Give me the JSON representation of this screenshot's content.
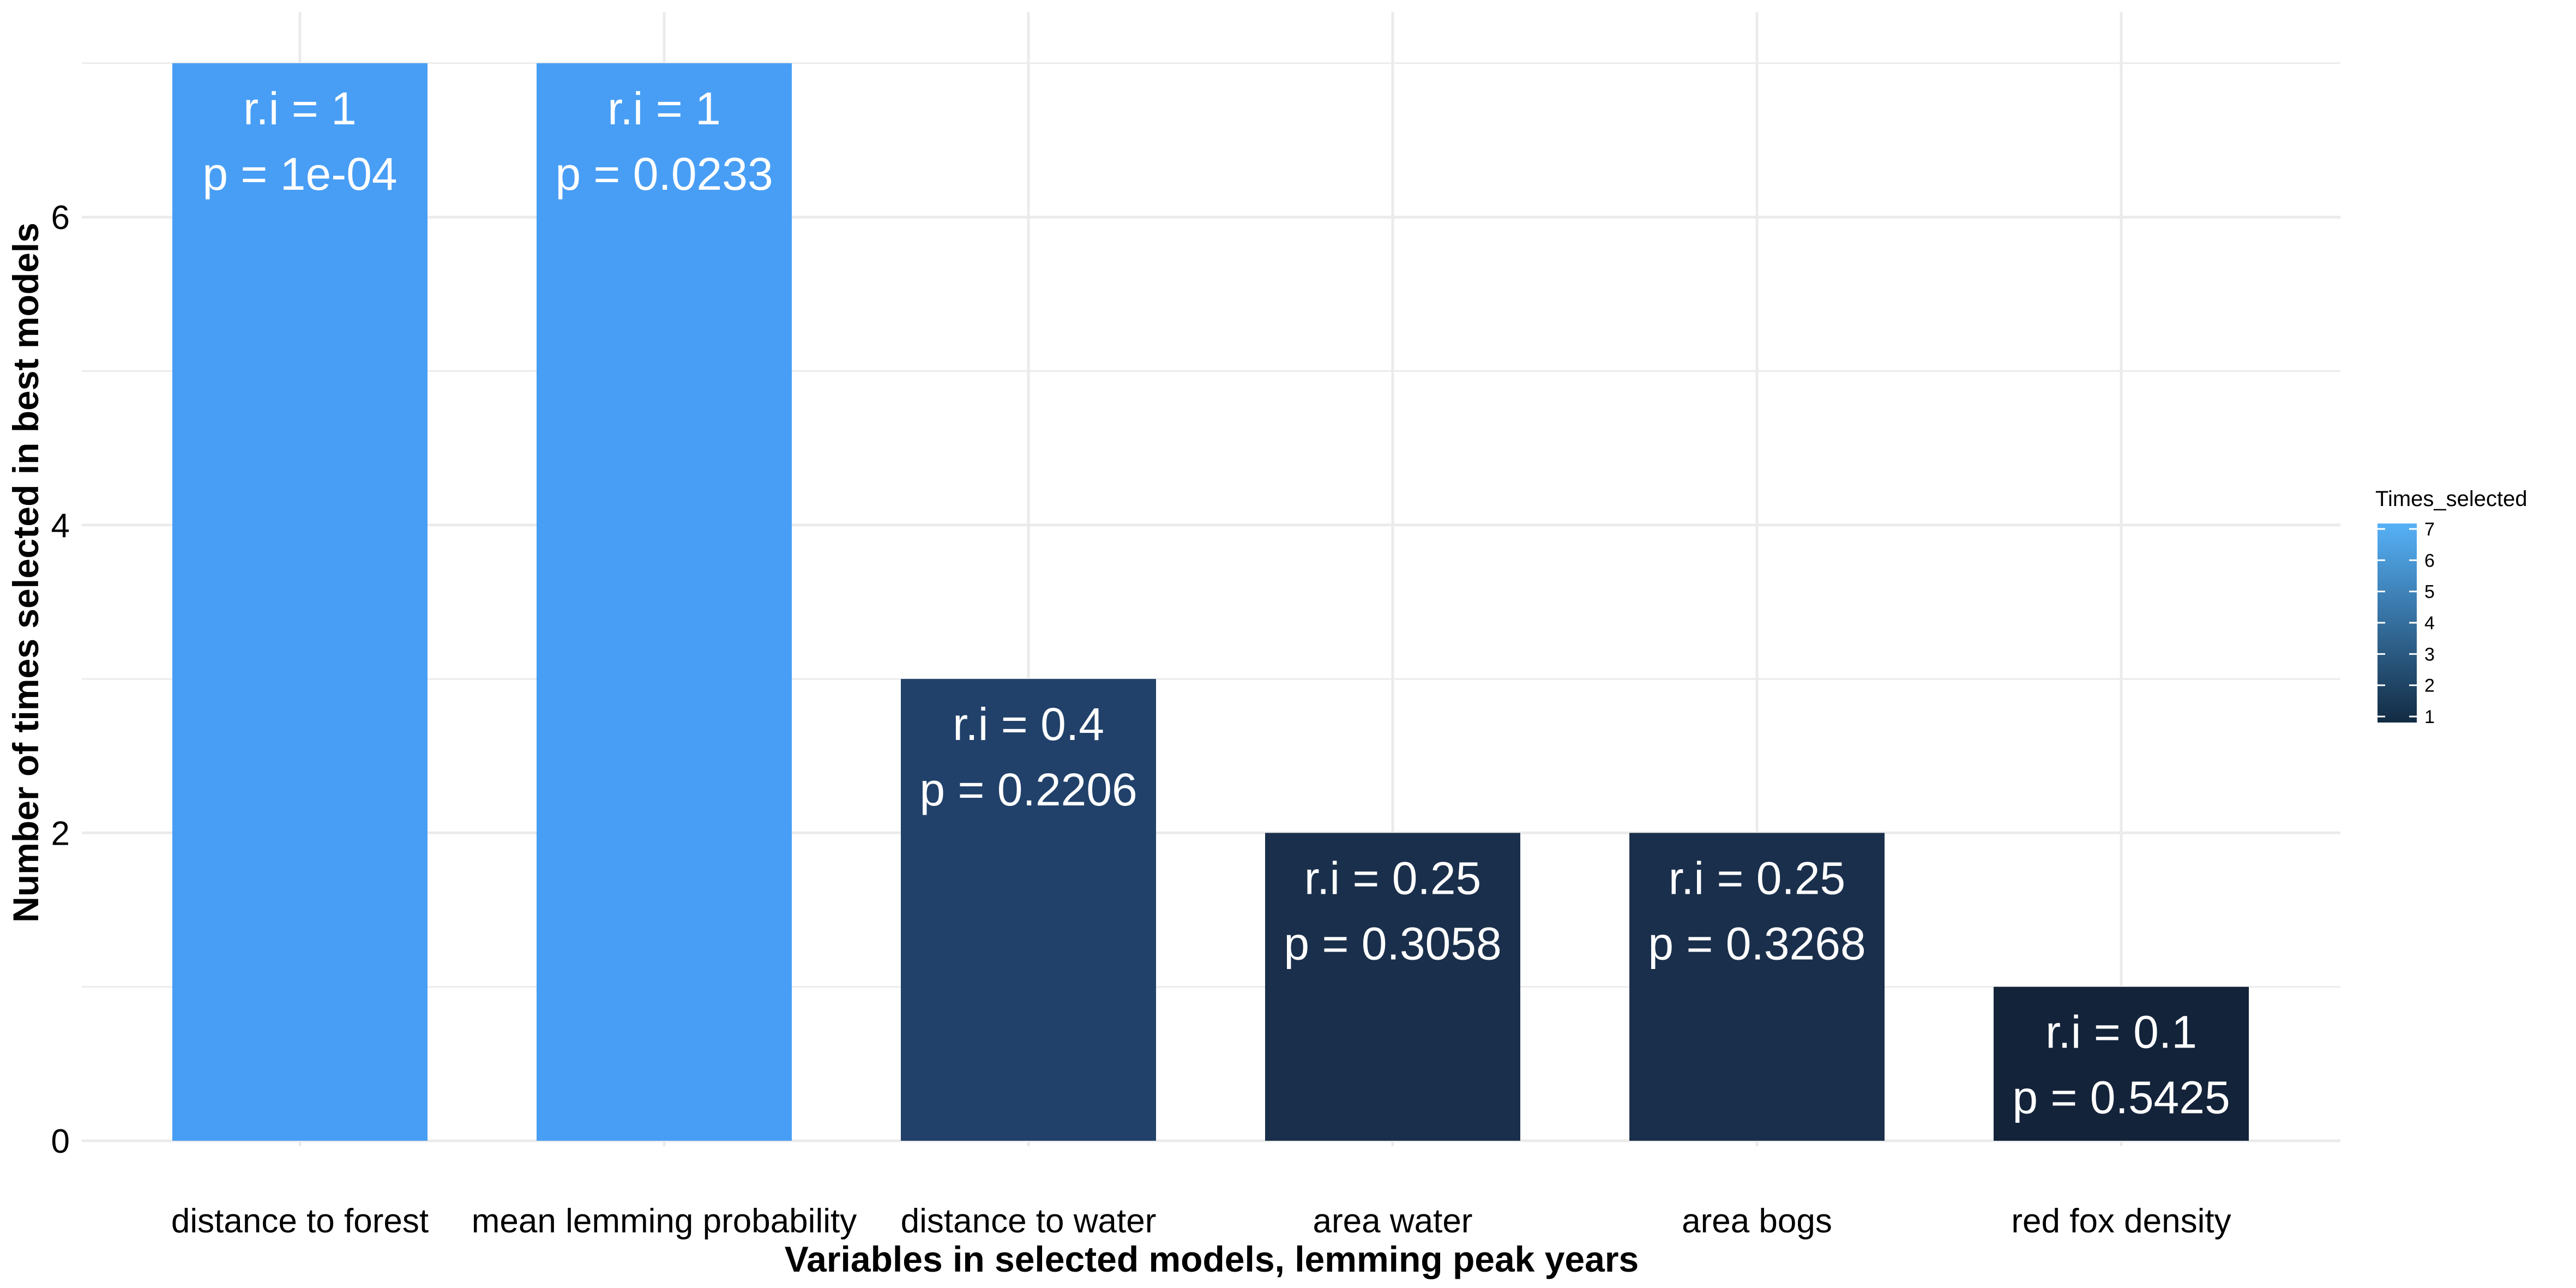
{
  "chart_data": {
    "type": "bar",
    "categories": [
      "distance to forest",
      "mean lemming probability",
      "distance to water",
      "area water",
      "area bogs",
      "red fox density"
    ],
    "values": [
      7,
      7,
      3,
      2,
      2,
      1
    ],
    "bar_labels": [
      {
        "ri": "r.i = 1",
        "p": "p = 1e-04"
      },
      {
        "ri": "r.i = 1",
        "p": "p = 0.0233"
      },
      {
        "ri": "r.i = 0.4",
        "p": "p = 0.2206"
      },
      {
        "ri": "r.i = 0.25",
        "p": "p = 0.3058"
      },
      {
        "ri": "r.i = 0.25",
        "p": "p = 0.3268"
      },
      {
        "ri": "r.i = 0.1",
        "p": "p = 0.5425"
      }
    ],
    "xlabel": "Variables in selected models, lemming peak years",
    "ylabel": "Number of times selected in best models",
    "ylim": [
      0,
      7.35
    ],
    "yticks": [
      0,
      2,
      4,
      6
    ],
    "grid": true,
    "legend": {
      "title": "Times_selected",
      "position": "right",
      "ticks": [
        1,
        2,
        3,
        4,
        5,
        6,
        7
      ],
      "color_low": "#132B43",
      "color_high": "#56B1F7"
    },
    "bar_colors": [
      "#489EF5",
      "#489EF5",
      "#21416A",
      "#1A2F4B",
      "#1A2F4B",
      "#13233A"
    ],
    "grid_color": "#EBEBEB",
    "text_color": "#000000"
  }
}
